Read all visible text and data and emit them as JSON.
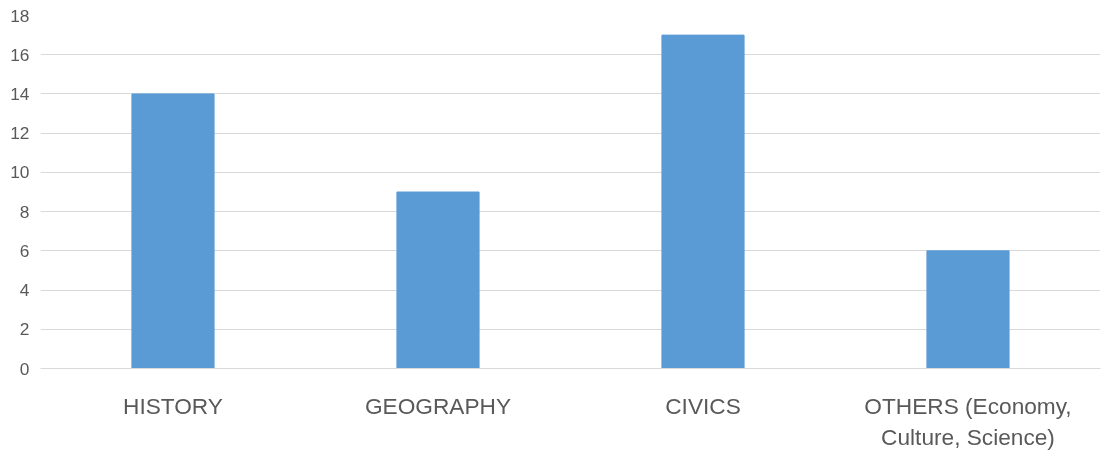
{
  "chart_data": {
    "type": "bar",
    "categories": [
      "HISTORY",
      "GEOGRAPHY",
      "CIVICS",
      "OTHERS (Economy, Culture, Science)"
    ],
    "values": [
      14,
      9,
      17,
      6
    ],
    "color": "#5b9bd5",
    "ylim": [
      0,
      18
    ],
    "yticks": [
      0,
      2,
      4,
      6,
      8,
      10,
      12,
      14,
      16,
      18
    ],
    "grid": "y"
  }
}
